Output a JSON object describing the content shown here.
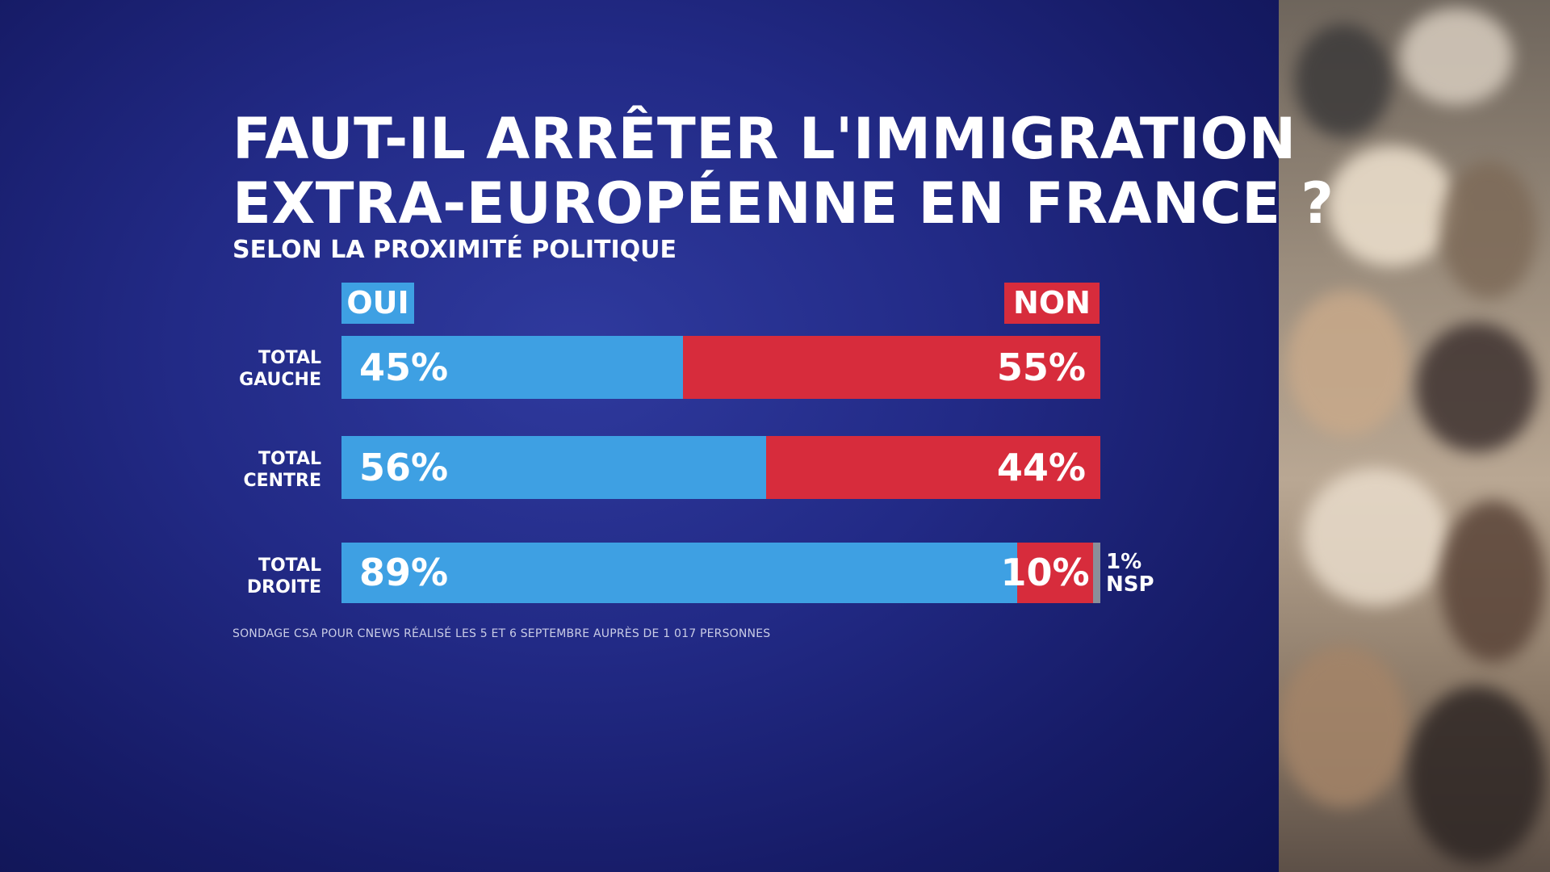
{
  "title_line1": "FAUT-IL ARRÊTER L'IMMIGRATION",
  "title_line2": "EXTRA-EUROPÉENNE EN FRANCE ?",
  "subtitle": "SELON LA PROXIMITÉ POLITIQUE",
  "legend": {
    "oui": "OUI",
    "non": "NON"
  },
  "rows": [
    {
      "label1": "TOTAL",
      "label2": "GAUCHE",
      "oui_label": "45%",
      "non_label": "55%"
    },
    {
      "label1": "TOTAL",
      "label2": "CENTRE",
      "oui_label": "56%",
      "non_label": "44%"
    },
    {
      "label1": "TOTAL",
      "label2": "DROITE",
      "oui_label": "89%",
      "non_label": "10%",
      "nsp_value": "1%",
      "nsp_label": "NSP"
    }
  ],
  "source": "SONDAGE CSA POUR CNEWS RÉALISÉ LES 5 ET 6 SEPTEMBRE AUPRÈS DE 1 017 PERSONNES",
  "colors": {
    "oui": "#3ea0e3",
    "non": "#d72c3c",
    "nsp": "#8a8f99",
    "background": "#222a86"
  },
  "chart_data": {
    "type": "bar",
    "orientation": "horizontal-stacked-100",
    "title": "FAUT-IL ARRÊTER L'IMMIGRATION EXTRA-EUROPÉENNE EN FRANCE ?",
    "subtitle": "SELON LA PROXIMITÉ POLITIQUE",
    "categories": [
      "TOTAL GAUCHE",
      "TOTAL CENTRE",
      "TOTAL DROITE"
    ],
    "series": [
      {
        "name": "OUI",
        "values": [
          45,
          56,
          89
        ]
      },
      {
        "name": "NON",
        "values": [
          55,
          44,
          10
        ]
      },
      {
        "name": "NSP",
        "values": [
          0,
          0,
          1
        ]
      }
    ],
    "unit": "%",
    "legend_position": "top"
  }
}
